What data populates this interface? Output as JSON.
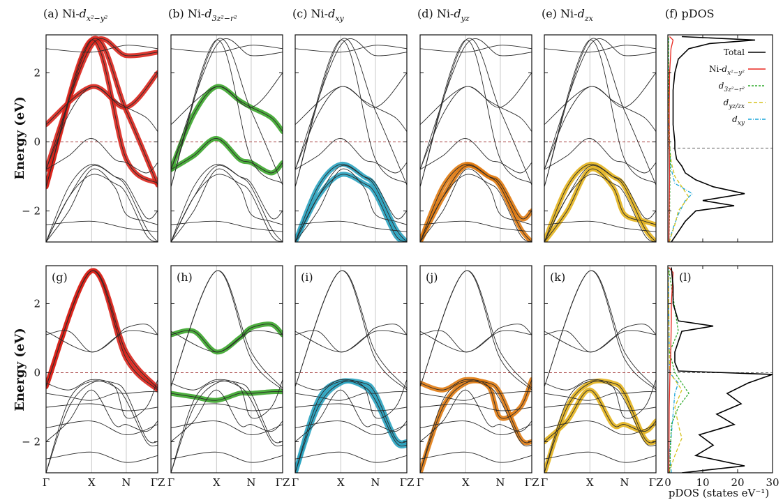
{
  "chart_data": [
    {
      "id": "top",
      "type": "line",
      "kind": "band-structure-row",
      "ylabel": "Energy (eV)",
      "ylim": [
        -2.9,
        3.1
      ],
      "yticks": [
        -2,
        0,
        2
      ],
      "kpath": [
        "Γ",
        "X",
        "N",
        "ΓZ"
      ],
      "kpos": [
        0,
        1,
        1.76,
        2.45
      ],
      "fermi_level": 0,
      "panels": [
        {
          "label": "(a) Ni-",
          "orbital": "d",
          "sub": "x²−y²",
          "color": "#d9241b",
          "bands": [
            0,
            1,
            6,
            7
          ]
        },
        {
          "label": "(b) Ni-",
          "orbital": "d",
          "sub": "3z²−r²",
          "color": "#3aa52a",
          "bands": [
            2,
            3
          ]
        },
        {
          "label": "(c) Ni-",
          "orbital": "d",
          "sub": "xy",
          "color": "#2aa3c0",
          "bands": [
            4,
            5
          ]
        },
        {
          "label": "(d) Ni-",
          "orbital": "d",
          "sub": "yz",
          "color": "#e07a10",
          "bands": [
            4,
            8
          ]
        },
        {
          "label": "(e) Ni-",
          "orbital": "d",
          "sub": "zx",
          "color": "#e3b31c",
          "bands": [
            4,
            9
          ]
        }
      ],
      "bands": [
        {
          "x": [
            0,
            1,
            1.76,
            2.45
          ],
          "y": [
            -1.3,
            2.95,
            0.9,
            -1.25
          ]
        },
        {
          "x": [
            0,
            1,
            1.76,
            2.45
          ],
          "y": [
            -1.3,
            2.95,
            -0.5,
            -1.2
          ]
        },
        {
          "x": [
            0,
            0.5,
            1,
            1.5,
            1.76,
            2.2,
            2.45
          ],
          "y": [
            -0.8,
            0.8,
            1.6,
            1.2,
            1.0,
            0.7,
            0.3
          ]
        },
        {
          "x": [
            0,
            0.5,
            1,
            1.5,
            1.76,
            2.2,
            2.45
          ],
          "y": [
            -0.8,
            -0.4,
            0.1,
            -0.5,
            -0.6,
            -0.9,
            -0.6
          ]
        },
        {
          "x": [
            0,
            0.5,
            1,
            1.5,
            1.76,
            2.2,
            2.45
          ],
          "y": [
            -2.9,
            -1.3,
            -0.65,
            -1.0,
            -1.3,
            -2.5,
            -2.9
          ]
        },
        {
          "x": [
            0,
            0.5,
            1,
            1.5,
            1.76,
            2.2,
            2.45
          ],
          "y": [
            -2.9,
            -1.6,
            -0.95,
            -1.2,
            -1.5,
            -2.7,
            -2.9
          ]
        },
        {
          "x": [
            0,
            1,
            1.76,
            2.45
          ],
          "y": [
            -0.8,
            2.8,
            2.5,
            2.6
          ]
        },
        {
          "x": [
            0,
            1,
            1.76,
            2.45
          ],
          "y": [
            0.5,
            1.6,
            1.0,
            2.0
          ]
        },
        {
          "x": [
            0,
            0.5,
            1,
            1.5,
            1.76,
            2.2,
            2.45
          ],
          "y": [
            -2.9,
            -1.6,
            -0.7,
            -1.0,
            -1.2,
            -2.2,
            -2.0
          ]
        },
        {
          "x": [
            0,
            0.5,
            1,
            1.5,
            1.76,
            2.2,
            2.45
          ],
          "y": [
            -2.9,
            -2.0,
            -0.8,
            -1.3,
            -2.1,
            -2.3,
            -2.4
          ]
        },
        {
          "x": [
            0,
            1,
            1.76,
            2.45
          ],
          "y": [
            -2.4,
            -2.3,
            -2.5,
            -2.6
          ]
        },
        {
          "x": [
            0,
            1,
            1.76,
            2.45
          ],
          "y": [
            2.7,
            2.6,
            2.8,
            2.7
          ]
        }
      ]
    },
    {
      "id": "bottom",
      "type": "line",
      "kind": "band-structure-row",
      "ylabel": "Energy (eV)",
      "ylim": [
        -2.9,
        3.1
      ],
      "yticks": [
        -2,
        0,
        2
      ],
      "kpath": [
        "Γ",
        "X",
        "N",
        "ΓZ"
      ],
      "kpos": [
        0,
        1,
        1.76,
        2.45
      ],
      "fermi_level": 0,
      "panels": [
        {
          "label": "(g)",
          "color": "#d9241b",
          "bands": [
            0,
            1
          ]
        },
        {
          "label": "(h)",
          "color": "#3aa52a",
          "bands": [
            2,
            3
          ]
        },
        {
          "label": "(i)",
          "color": "#2aa3c0",
          "bands": [
            4,
            5
          ]
        },
        {
          "label": "(j)",
          "color": "#e07a10",
          "bands": [
            4,
            8
          ]
        },
        {
          "label": "(k)",
          "color": "#e3b31c",
          "bands": [
            4,
            9
          ]
        }
      ],
      "bands": [
        {
          "x": [
            0,
            1,
            1.76,
            2.45
          ],
          "y": [
            -0.4,
            2.95,
            0.6,
            -0.45
          ]
        },
        {
          "x": [
            0,
            1,
            1.76,
            2.45
          ],
          "y": [
            -0.4,
            2.95,
            0.4,
            -0.5
          ]
        },
        {
          "x": [
            0,
            0.5,
            1,
            1.5,
            1.76,
            2.2,
            2.45
          ],
          "y": [
            1.1,
            1.2,
            0.6,
            1.0,
            1.3,
            1.4,
            1.1
          ]
        },
        {
          "x": [
            0,
            0.5,
            1,
            1.5,
            1.76,
            2.2,
            2.45
          ],
          "y": [
            -0.6,
            -0.7,
            -0.8,
            -0.6,
            -0.6,
            -0.55,
            -0.55
          ]
        },
        {
          "x": [
            0,
            0.5,
            1,
            1.5,
            1.76,
            2.2,
            2.45
          ],
          "y": [
            -2.9,
            -1.0,
            -0.3,
            -0.3,
            -0.6,
            -1.9,
            -2.0
          ]
        },
        {
          "x": [
            0,
            0.5,
            1,
            1.5,
            1.76,
            2.2,
            2.45
          ],
          "y": [
            -2.9,
            -0.8,
            -0.25,
            -0.4,
            -0.8,
            -2.0,
            -2.1
          ]
        },
        {
          "x": [
            0,
            1,
            1.76,
            2.45
          ],
          "y": [
            1.2,
            0.6,
            1.2,
            1.1
          ]
        },
        {
          "x": [
            0,
            1,
            1.76,
            2.45
          ],
          "y": [
            -1.0,
            -0.9,
            -1.1,
            -1.0
          ]
        },
        {
          "x": [
            0,
            0.5,
            1,
            1.5,
            1.76,
            2.2,
            2.45
          ],
          "y": [
            -0.3,
            -0.5,
            -0.2,
            -0.4,
            -1.3,
            -1.0,
            -0.2
          ]
        },
        {
          "x": [
            0,
            0.5,
            1,
            1.5,
            1.76,
            2.2,
            2.45
          ],
          "y": [
            -2.0,
            -1.4,
            -0.5,
            -1.5,
            -1.5,
            -1.7,
            -1.4
          ]
        },
        {
          "x": [
            0,
            1,
            1.76,
            2.45
          ],
          "y": [
            -2.5,
            -2.3,
            -2.6,
            -2.4
          ]
        },
        {
          "x": [
            0,
            1,
            1.76,
            2.45
          ],
          "y": [
            -1.6,
            -1.4,
            -1.8,
            -1.5
          ]
        }
      ]
    },
    {
      "id": "pdos-top",
      "type": "line",
      "kind": "pdos",
      "label": "(f) pDOS",
      "xlim": [
        0,
        30
      ],
      "ylim": [
        -2.9,
        3.1
      ],
      "fermi_level": -0.18,
      "legend": [
        {
          "text": "Total",
          "color": "#000000",
          "dash": ""
        },
        {
          "text": "Ni-",
          "math": "d",
          "sub": "x²−y²",
          "color": "#e8261e",
          "dash": ""
        },
        {
          "text": "",
          "math": "d",
          "sub": "3z²−r²",
          "color": "#2eaa2a",
          "dash": "3,2"
        },
        {
          "text": "",
          "math": "d",
          "sub": "yz/zx",
          "color": "#d6c21c",
          "dash": "5,3"
        },
        {
          "text": "",
          "math": "d",
          "sub": "xy",
          "color": "#1aa5d8",
          "dash": "5,2,1,2"
        }
      ],
      "series": [
        {
          "color": "#000000",
          "dash": "",
          "e": [
            -2.9,
            -2.6,
            -2.3,
            -2.0,
            -1.85,
            -1.7,
            -1.5,
            -1.3,
            -1.1,
            -0.9,
            -0.7,
            -0.5,
            -0.2,
            0.0,
            0.5,
            1.0,
            1.5,
            2.0,
            2.4,
            2.7,
            2.85,
            2.95,
            3.05
          ],
          "v": [
            1,
            3,
            5,
            8,
            19,
            10,
            22,
            13,
            8,
            5,
            4,
            2.5,
            2,
            2,
            1.5,
            1.5,
            1.5,
            2,
            3,
            6,
            12,
            25,
            4
          ]
        },
        {
          "color": "#e8261e",
          "dash": "",
          "e": [
            -2.9,
            -1.0,
            0.0,
            1.0,
            2.0,
            2.7,
            2.95,
            3.05
          ],
          "v": [
            0.3,
            0.5,
            0.4,
            0.4,
            0.5,
            0.9,
            1.5,
            0.5
          ]
        },
        {
          "color": "#2eaa2a",
          "dash": "3,2",
          "e": [
            -2.9,
            -2.0,
            -1.0,
            -0.5,
            0.0,
            1.0,
            2.0,
            3.05
          ],
          "v": [
            0.3,
            0.5,
            0.6,
            0.7,
            0.5,
            0.3,
            0.2,
            0.2
          ]
        },
        {
          "color": "#d6c21c",
          "dash": "5,3",
          "e": [
            -2.9,
            -2.4,
            -2.0,
            -1.6,
            -1.3,
            -1.0,
            -0.6,
            0.0,
            1.0,
            3.05
          ],
          "v": [
            0.4,
            2,
            3,
            6,
            4,
            2,
            1,
            0.3,
            0.2,
            0.1
          ]
        },
        {
          "color": "#1aa5d8",
          "dash": "5,2,1,2",
          "e": [
            -2.9,
            -2.5,
            -2.1,
            -1.7,
            -1.5,
            -1.2,
            -0.8,
            0.0,
            3.05
          ],
          "v": [
            0.3,
            1.5,
            3,
            5,
            7,
            2,
            1,
            0.2,
            0.1
          ]
        }
      ]
    },
    {
      "id": "pdos-bottom",
      "type": "line",
      "kind": "pdos",
      "label": "(l)",
      "xlim": [
        0,
        30
      ],
      "ylim": [
        -2.9,
        3.1
      ],
      "xticks": [
        0,
        10,
        20,
        30
      ],
      "xlabel": "pDOS (states eV⁻¹)",
      "fermi_level": 0,
      "series": [
        {
          "color": "#000000",
          "dash": "",
          "e": [
            -2.9,
            -2.7,
            -2.4,
            -2.1,
            -1.8,
            -1.5,
            -1.2,
            -0.9,
            -0.6,
            -0.3,
            -0.05,
            0.05,
            0.3,
            0.6,
            0.9,
            1.2,
            1.35,
            1.5,
            2.0,
            2.5,
            3.05
          ],
          "v": [
            4,
            22,
            8,
            13,
            9,
            19,
            14,
            21,
            17,
            23,
            30,
            3,
            2,
            2,
            3,
            4,
            13,
            3,
            1.5,
            1.5,
            1
          ]
        },
        {
          "color": "#e8261e",
          "dash": "",
          "e": [
            -2.9,
            -1.0,
            0.0,
            0.5,
            1.0,
            1.5,
            2.0,
            2.9,
            3.05
          ],
          "v": [
            0.3,
            0.4,
            0.6,
            0.8,
            0.9,
            1.0,
            1.0,
            1.5,
            0.3
          ]
        },
        {
          "color": "#2eaa2a",
          "dash": "3,2",
          "e": [
            -2.9,
            -1.5,
            -1.0,
            -0.6,
            -0.3,
            0.0,
            0.6,
            1.2,
            3.05
          ],
          "v": [
            0.5,
            1,
            3,
            6,
            4,
            2,
            0.5,
            3,
            0.2
          ]
        },
        {
          "color": "#d6c21c",
          "dash": "5,3",
          "e": [
            -2.9,
            -2.4,
            -1.9,
            -1.5,
            -1.0,
            -0.5,
            -0.2,
            0.0,
            3.05
          ],
          "v": [
            0.3,
            2,
            4,
            3,
            2,
            4,
            2,
            0.5,
            0.1
          ]
        },
        {
          "color": "#1aa5d8",
          "dash": "5,2,1,2",
          "e": [
            -2.9,
            -2.3,
            -1.8,
            -1.2,
            -0.6,
            -0.3,
            0.0,
            3.05
          ],
          "v": [
            1,
            0.5,
            1,
            1.5,
            2,
            3,
            0.5,
            0.1
          ]
        }
      ]
    }
  ]
}
